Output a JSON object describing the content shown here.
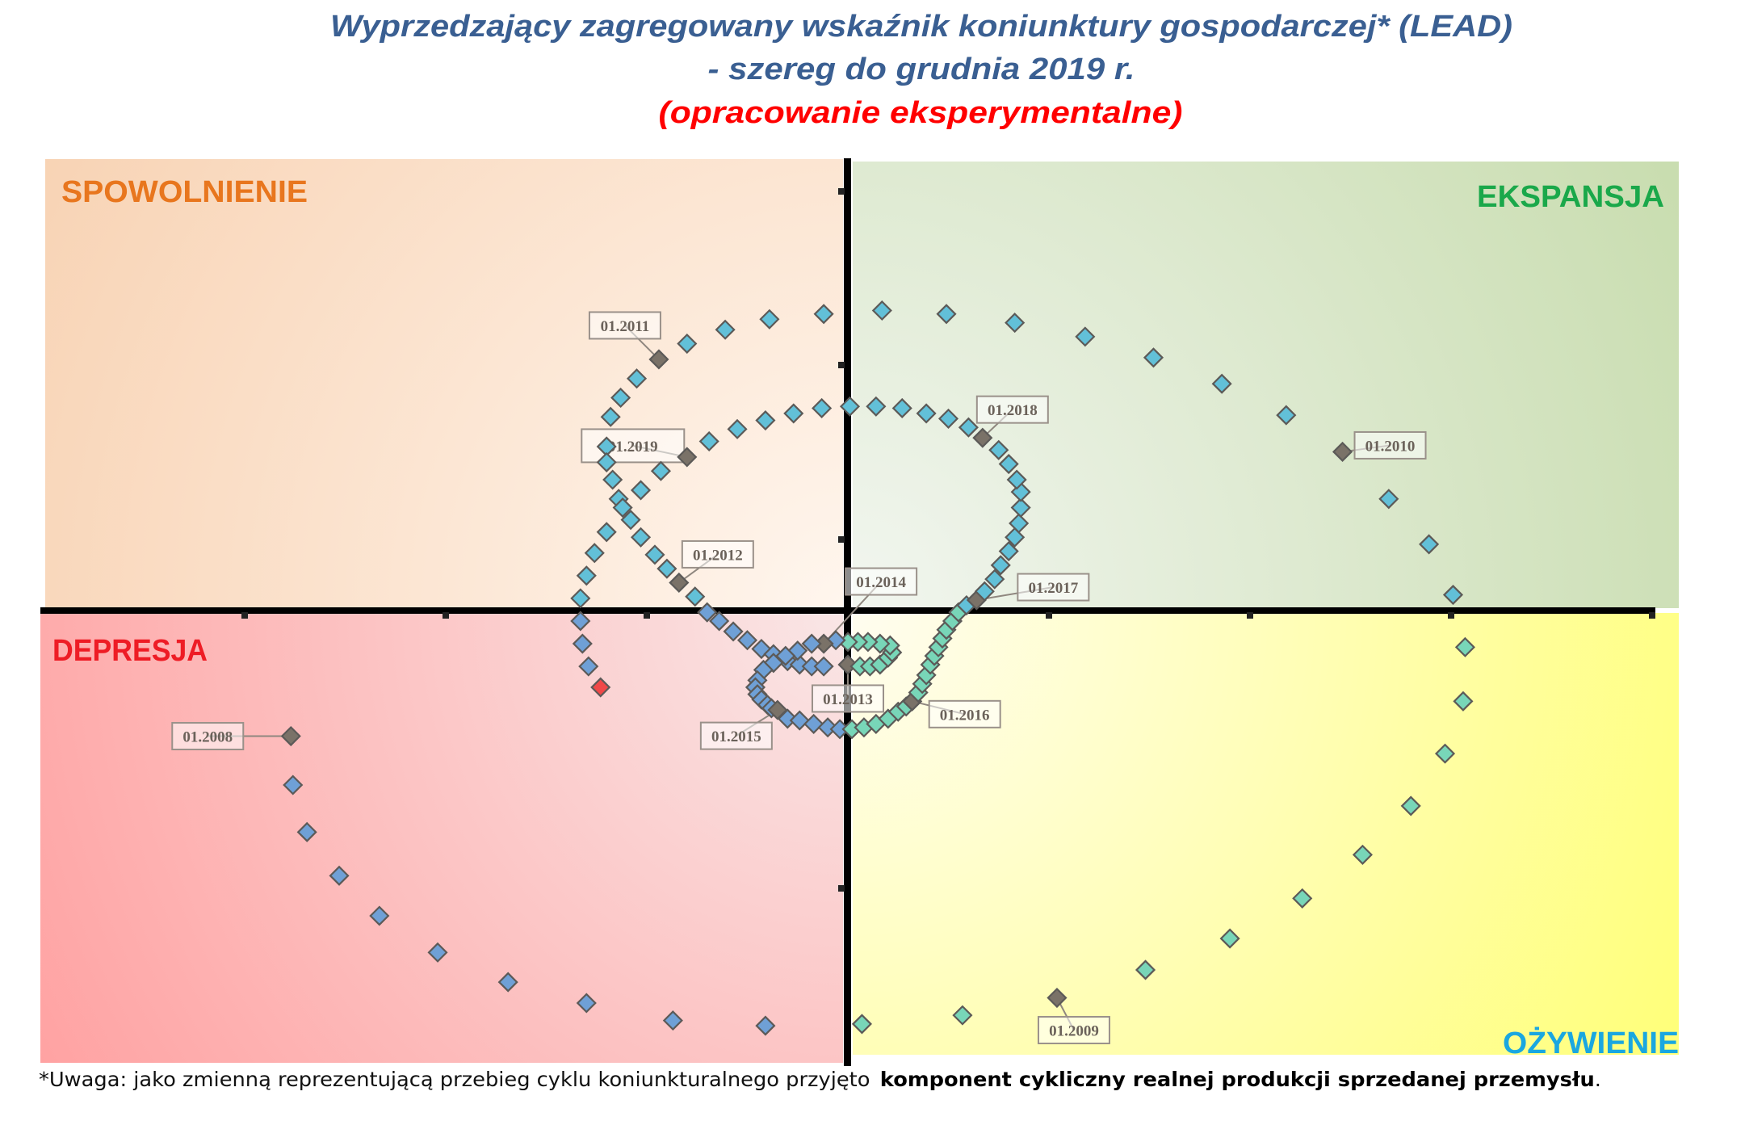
{
  "title": {
    "line1": "Wyprzedzający zagregowany wskaźnik koniunktury gospodarczej* (LEAD)",
    "line2": "- szereg do grudnia 2019 r.",
    "line3": "(opracowanie eksperymentalne)",
    "color_main": "#3a5f92",
    "color_sub": "#ff0000"
  },
  "footnote": {
    "normal": "*Uwaga: jako zmienną reprezentującą przebieg cyklu koniunkturalnego przyjęto",
    "bold": "komponent cykliczny realnej produkcji sprzedanej przemysłu",
    "end": "."
  },
  "chart_data": {
    "type": "scatter",
    "description_style": "business cycle clock, connected monthly diamonds",
    "xlim": [
      -4.02,
      4.12
    ],
    "ylim": [
      -2.6,
      2.6
    ],
    "grid": false,
    "axis_tick_labels": false,
    "quadrants": {
      "top_left": {
        "label": "SPOWOLNIENIE",
        "color": "#e8761e"
      },
      "top_right": {
        "label": "EKSPANSJA",
        "color": "#1aa84a"
      },
      "bottom_left": {
        "label": "DEPRESJA",
        "color": "#ee1c25"
      },
      "bottom_right": {
        "label": "OŻYWIENIE",
        "color": "#1aa7e0"
      }
    },
    "marker_colors": {
      "upper": "#62c0d8",
      "lower_left": "#6fa0d6",
      "lower_right": "#78d6b8",
      "january": "#7a7268",
      "latest": "#f04848"
    },
    "points": [
      [
        -2.77,
        -0.72
      ],
      [
        -2.76,
        -1.0
      ],
      [
        -2.69,
        -1.27
      ],
      [
        -2.53,
        -1.52
      ],
      [
        -2.33,
        -1.75
      ],
      [
        -2.04,
        -1.96
      ],
      [
        -1.69,
        -2.13
      ],
      [
        -1.3,
        -2.25
      ],
      [
        -0.87,
        -2.35
      ],
      [
        -0.41,
        -2.38
      ],
      [
        0.07,
        -2.37
      ],
      [
        0.57,
        -2.32
      ],
      [
        1.04,
        -2.22
      ],
      [
        1.48,
        -2.06
      ],
      [
        1.9,
        -1.88
      ],
      [
        2.26,
        -1.65
      ],
      [
        2.56,
        -1.4
      ],
      [
        2.8,
        -1.12
      ],
      [
        2.97,
        -0.82
      ],
      [
        3.06,
        -0.52
      ],
      [
        3.07,
        -0.21
      ],
      [
        3.01,
        0.09
      ],
      [
        2.89,
        0.38
      ],
      [
        2.69,
        0.64
      ],
      [
        2.46,
        0.91
      ],
      [
        2.18,
        1.12
      ],
      [
        1.86,
        1.3
      ],
      [
        1.52,
        1.45
      ],
      [
        1.18,
        1.57
      ],
      [
        0.83,
        1.65
      ],
      [
        0.49,
        1.7
      ],
      [
        0.17,
        1.72
      ],
      [
        -0.12,
        1.7
      ],
      [
        -0.39,
        1.67
      ],
      [
        -0.61,
        1.61
      ],
      [
        -0.8,
        1.53
      ],
      [
        -0.94,
        1.44
      ],
      [
        -1.05,
        1.33
      ],
      [
        -1.13,
        1.22
      ],
      [
        -1.18,
        1.11
      ],
      [
        -1.2,
        0.94
      ],
      [
        -1.2,
        0.85
      ],
      [
        -1.17,
        0.75
      ],
      [
        -1.14,
        0.64
      ],
      [
        -1.08,
        0.52
      ],
      [
        -1.03,
        0.42
      ],
      [
        -0.96,
        0.32
      ],
      [
        -0.9,
        0.24
      ],
      [
        -0.84,
        0.16
      ],
      [
        -0.76,
        0.08
      ],
      [
        -0.7,
        -0.01
      ],
      [
        -0.64,
        -0.06
      ],
      [
        -0.57,
        -0.12
      ],
      [
        -0.5,
        -0.17
      ],
      [
        -0.43,
        -0.22
      ],
      [
        -0.37,
        -0.25
      ],
      [
        -0.3,
        -0.29
      ],
      [
        -0.24,
        -0.31
      ],
      [
        -0.18,
        -0.32
      ],
      [
        -0.12,
        -0.32
      ],
      [
        0.0,
        -0.31
      ],
      [
        0.06,
        -0.32
      ],
      [
        0.11,
        -0.32
      ],
      [
        0.16,
        -0.31
      ],
      [
        0.2,
        -0.27
      ],
      [
        0.22,
        -0.24
      ],
      [
        0.21,
        -0.2
      ],
      [
        0.16,
        -0.19
      ],
      [
        0.1,
        -0.18
      ],
      [
        0.05,
        -0.18
      ],
      [
        0.0,
        -0.18
      ],
      [
        -0.06,
        -0.17
      ],
      [
        -0.12,
        -0.19
      ],
      [
        -0.18,
        -0.19
      ],
      [
        -0.25,
        -0.23
      ],
      [
        -0.31,
        -0.26
      ],
      [
        -0.37,
        -0.3
      ],
      [
        -0.42,
        -0.34
      ],
      [
        -0.45,
        -0.4
      ],
      [
        -0.46,
        -0.44
      ],
      [
        -0.45,
        -0.48
      ],
      [
        -0.43,
        -0.51
      ],
      [
        -0.4,
        -0.54
      ],
      [
        -0.38,
        -0.56
      ],
      [
        -0.35,
        -0.57
      ],
      [
        -0.3,
        -0.62
      ],
      [
        -0.24,
        -0.63
      ],
      [
        -0.17,
        -0.65
      ],
      [
        -0.1,
        -0.67
      ],
      [
        -0.04,
        -0.68
      ],
      [
        0.02,
        -0.68
      ],
      [
        0.08,
        -0.67
      ],
      [
        0.14,
        -0.65
      ],
      [
        0.2,
        -0.62
      ],
      [
        0.25,
        -0.58
      ],
      [
        0.29,
        -0.55
      ],
      [
        0.32,
        -0.52
      ],
      [
        0.35,
        -0.47
      ],
      [
        0.37,
        -0.42
      ],
      [
        0.39,
        -0.37
      ],
      [
        0.41,
        -0.31
      ],
      [
        0.43,
        -0.26
      ],
      [
        0.45,
        -0.21
      ],
      [
        0.47,
        -0.16
      ],
      [
        0.49,
        -0.11
      ],
      [
        0.52,
        -0.06
      ],
      [
        0.55,
        -0.01
      ],
      [
        0.59,
        0.03
      ],
      [
        0.64,
        0.06
      ],
      [
        0.68,
        0.11
      ],
      [
        0.73,
        0.18
      ],
      [
        0.76,
        0.26
      ],
      [
        0.8,
        0.34
      ],
      [
        0.83,
        0.42
      ],
      [
        0.85,
        0.5
      ],
      [
        0.86,
        0.59
      ],
      [
        0.86,
        0.68
      ],
      [
        0.84,
        0.75
      ],
      [
        0.8,
        0.84
      ],
      [
        0.75,
        0.92
      ],
      [
        0.67,
        0.99
      ],
      [
        0.6,
        1.05
      ],
      [
        0.5,
        1.1
      ],
      [
        0.39,
        1.13
      ],
      [
        0.27,
        1.16
      ],
      [
        0.14,
        1.17
      ],
      [
        0.01,
        1.17
      ],
      [
        -0.13,
        1.16
      ],
      [
        -0.27,
        1.13
      ],
      [
        -0.41,
        1.09
      ],
      [
        -0.55,
        1.04
      ],
      [
        -0.69,
        0.97
      ],
      [
        -0.8,
        0.88
      ],
      [
        -0.93,
        0.8
      ],
      [
        -1.03,
        0.69
      ],
      [
        -1.12,
        0.59
      ],
      [
        -1.2,
        0.45
      ],
      [
        -1.26,
        0.33
      ],
      [
        -1.3,
        0.2
      ],
      [
        -1.33,
        0.07
      ],
      [
        -1.33,
        -0.06
      ],
      [
        -1.32,
        -0.19
      ],
      [
        -1.29,
        -0.32
      ],
      [
        -1.23,
        -0.44
      ]
    ],
    "annotations": [
      {
        "text": "01.2008",
        "index": 0
      },
      {
        "text": "01.2009",
        "index": 12
      },
      {
        "text": "01.2010",
        "index": 24
      },
      {
        "text": "01.2011",
        "index": 36
      },
      {
        "text": "01.2012",
        "index": 48
      },
      {
        "text": "01.2013",
        "index": 60
      },
      {
        "text": "01.2014",
        "index": 72
      },
      {
        "text": "01.2015",
        "index": 84
      },
      {
        "text": "01.2016",
        "index": 96
      },
      {
        "text": "01.2017",
        "index": 108
      },
      {
        "text": "01.2018",
        "index": 120
      },
      {
        "text": "01.2019",
        "index": 132
      }
    ]
  }
}
